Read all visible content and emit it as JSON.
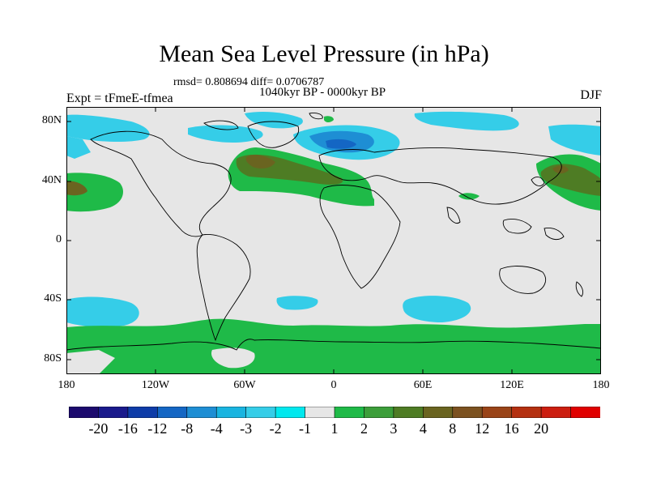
{
  "header": {
    "title": "Mean Sea Level Pressure (in hPa)",
    "stats": "rmsd= 0.808694 diff= 0.0706787",
    "period": "1040kyr BP - 0000kyr BP",
    "experiment": "Expt = tFmeE-tfmea",
    "season": "DJF"
  },
  "axes": {
    "lat_labels": [
      "80N",
      "40N",
      "0",
      "40S",
      "80S"
    ],
    "lon_labels": [
      "180",
      "120W",
      "60W",
      "0",
      "60E",
      "120E",
      "180"
    ]
  },
  "colorbar": {
    "colors": [
      "#1c0a6e",
      "#1a1a8c",
      "#0e3ca8",
      "#1466c4",
      "#1e8ed4",
      "#19b4e0",
      "#35cde8",
      "#00e8ee",
      "#e6e6e6",
      "#1fba48",
      "#3c9e3a",
      "#4e7c24",
      "#6a6420",
      "#7c5220",
      "#9a4418",
      "#b43010",
      "#cc1e10",
      "#e00000"
    ],
    "labels": [
      "-20",
      "-16",
      "-12",
      "-8",
      "-4",
      "-3",
      "-2",
      "-1",
      "1",
      "2",
      "3",
      "4",
      "8",
      "12",
      "16",
      "20"
    ]
  },
  "chart_data": {
    "type": "heatmap",
    "title": "Mean Sea Level Pressure (in hPa)",
    "variable": "Mean sea level pressure difference",
    "units": "hPa",
    "season": "DJF",
    "levels": [
      -20,
      -16,
      -12,
      -8,
      -4,
      -3,
      -2,
      -1,
      1,
      2,
      3,
      4,
      8,
      12,
      16,
      20
    ],
    "xlim": [
      -180,
      180
    ],
    "ylim": [
      -90,
      90
    ],
    "regions": [
      {
        "name": "North Atlantic / Europe high",
        "sign": "positive",
        "range": "2 to 4"
      },
      {
        "name": "Northeast Pacific high (east of Japan)",
        "sign": "positive",
        "range": "2 to 4"
      },
      {
        "name": "Central North Pacific high",
        "sign": "positive",
        "range": "2 to 4"
      },
      {
        "name": "Southern Ocean ring",
        "sign": "positive",
        "range": "1 to 2"
      },
      {
        "name": "Arctic / Barents-Kara low",
        "sign": "negative",
        "range": "-8 to -2"
      },
      {
        "name": "Southeast Pacific low",
        "sign": "negative",
        "range": "-3 to -1"
      },
      {
        "name": "South Atlantic / Indian Ocean low",
        "sign": "negative",
        "range": "-2 to -1"
      }
    ]
  }
}
